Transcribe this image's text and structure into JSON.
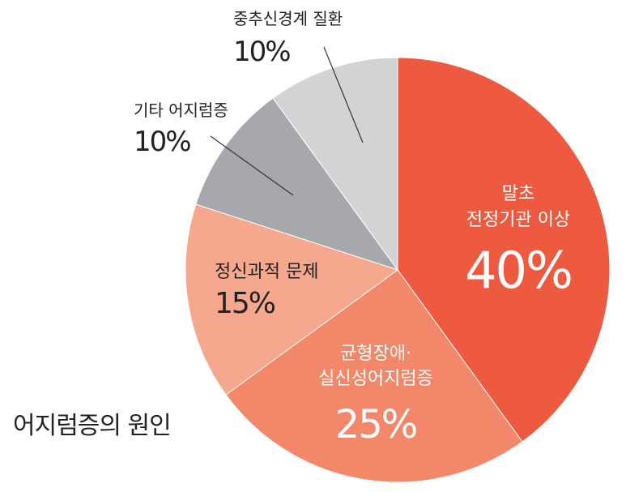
{
  "chart_data": {
    "type": "pie",
    "title": "어지럼증의 원인",
    "start_angle_deg": 0,
    "direction": "clockwise",
    "slices": [
      {
        "label_lines": [
          "말초",
          "전정기관 이상"
        ],
        "value": 40,
        "value_label": "40%",
        "color": "#ee5a40"
      },
      {
        "label_lines": [
          "균형장애·",
          "실신성어지럼증"
        ],
        "value": 25,
        "value_label": "25%",
        "color": "#f2876a"
      },
      {
        "label_lines": [
          "정신과적 문제"
        ],
        "value": 15,
        "value_label": "15%",
        "color": "#f5a88e"
      },
      {
        "label_lines": [
          "기타 어지럼증"
        ],
        "value": 10,
        "value_label": "10%",
        "color": "#a7a8ab"
      },
      {
        "label_lines": [
          "중추신경계 질환"
        ],
        "value": 10,
        "value_label": "10%",
        "color": "#d2d3d5"
      }
    ]
  }
}
